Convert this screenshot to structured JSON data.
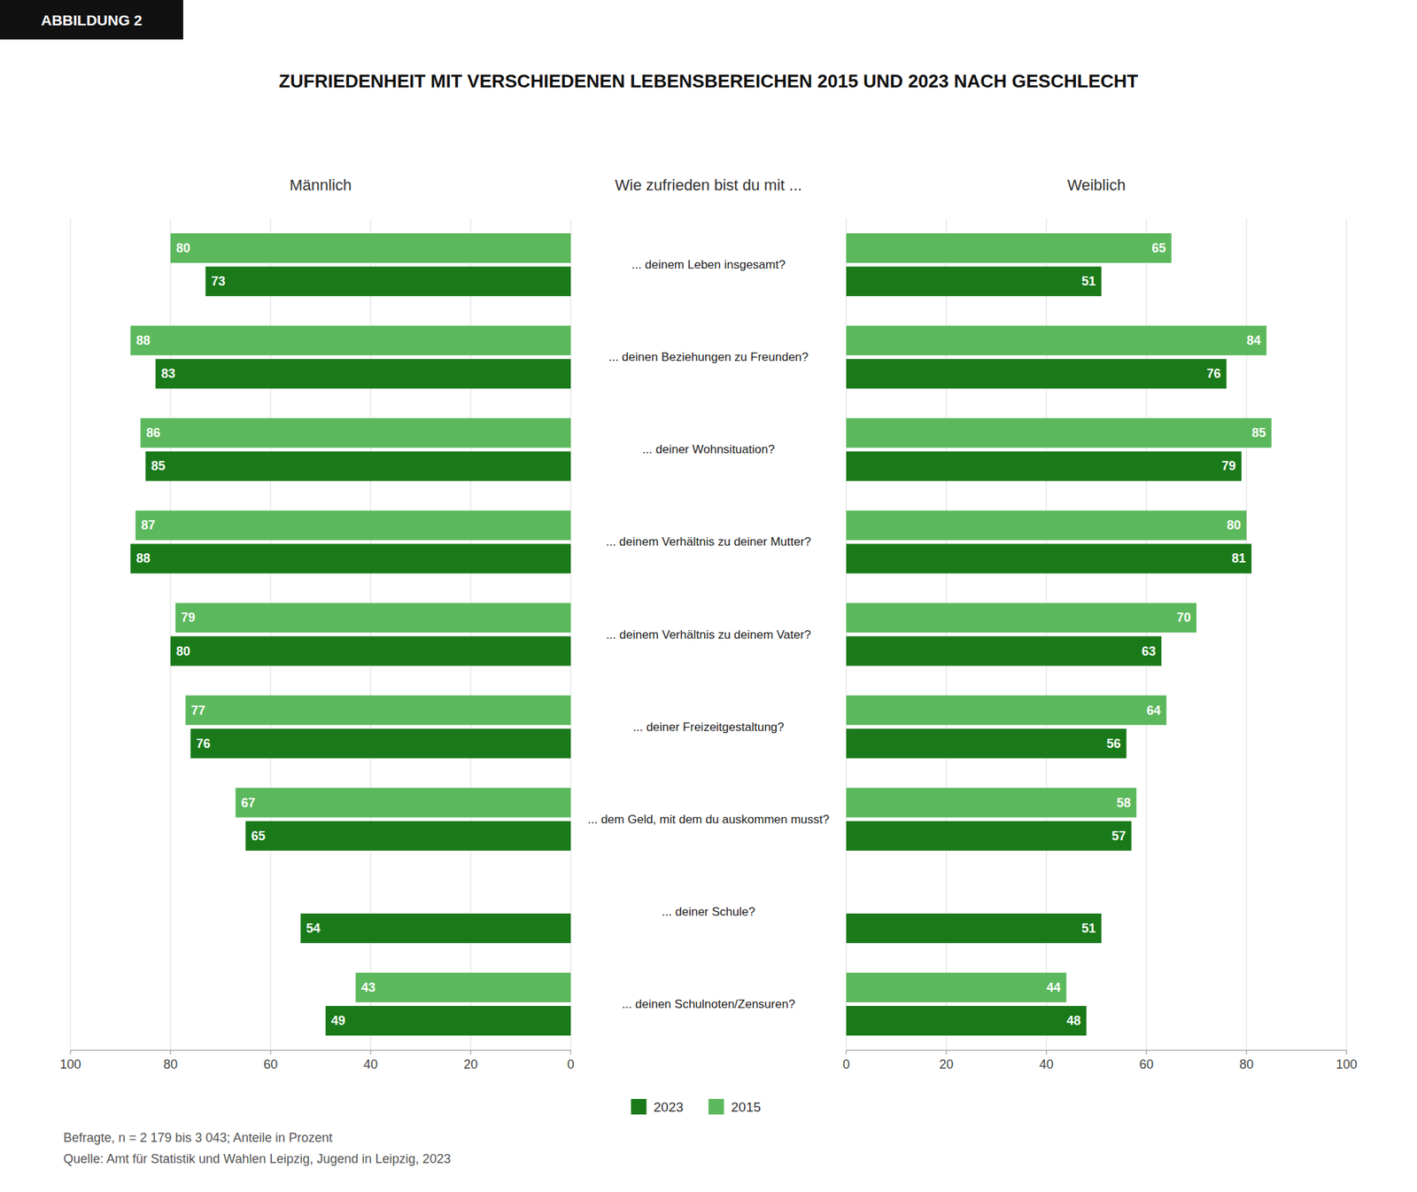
{
  "title": "ZUFRIEDENHEIT MIT VERSCHIEDENEN LEBENSBEREICHEN 2015 UND 2023 NACH GESCHLECHT",
  "annotations": [
    "ABBILDUNG 2",
    "Wie zufrieden bist du mit ...",
    "Befragte, n = 2 179 bis 3 043; Anteile in Prozent",
    "Quelle: Amt für Statistik und Wahlen Leipzig, Jugend in Leipzig, 2023"
  ],
  "chart_data": [
    {
      "type": "bar",
      "orientation": "horizontal",
      "title": "Männlich",
      "categories": [
        "... deinem Leben insgesamt?",
        "... deinen Beziehungen zu Freunden?",
        "... deiner Wohnsituation?",
        "... deinem Verhältnis zu deiner Mutter?",
        "... deinem Verhältnis zu deinem Vater?",
        "... deiner Freizeitgestaltung?",
        "... dem Geld, mit dem du auskommen musst?",
        "... deiner Schule?",
        "... deinen Schulnoten/Zensuren?"
      ],
      "series": [
        {
          "name": "2023",
          "color": "#1a7a1a",
          "values": [
            73,
            83,
            85,
            88,
            80,
            76,
            65,
            54,
            49
          ]
        },
        {
          "name": "2015",
          "color": "#5cb85c",
          "values": [
            80,
            88,
            86,
            87,
            79,
            77,
            67,
            null,
            43
          ]
        }
      ],
      "xlim": [
        100,
        0
      ],
      "xticks": [
        100,
        80,
        60,
        40,
        20,
        0
      ],
      "grid": true,
      "data_labels": true,
      "legend": "bottom"
    },
    {
      "type": "bar",
      "orientation": "horizontal",
      "title": "Weiblich",
      "categories": [
        "... deinem Leben insgesamt?",
        "... deinen Beziehungen zu Freunden?",
        "... deiner Wohnsituation?",
        "... deinem Verhältnis zu deiner Mutter?",
        "... deinem Verhältnis zu deinem Vater?",
        "... deiner Freizeitgestaltung?",
        "... dem Geld, mit dem du auskommen musst?",
        "... deiner Schule?",
        "... deinen Schulnoten/Zensuren?"
      ],
      "series": [
        {
          "name": "2023",
          "color": "#1a7a1a",
          "values": [
            51,
            76,
            79,
            81,
            63,
            56,
            57,
            51,
            48
          ]
        },
        {
          "name": "2015",
          "color": "#5cb85c",
          "values": [
            65,
            84,
            85,
            80,
            70,
            64,
            58,
            null,
            44
          ]
        }
      ],
      "xlim": [
        0,
        100
      ],
      "xticks": [
        0,
        20,
        40,
        60,
        80,
        100
      ],
      "grid": true,
      "data_labels": true
    }
  ]
}
